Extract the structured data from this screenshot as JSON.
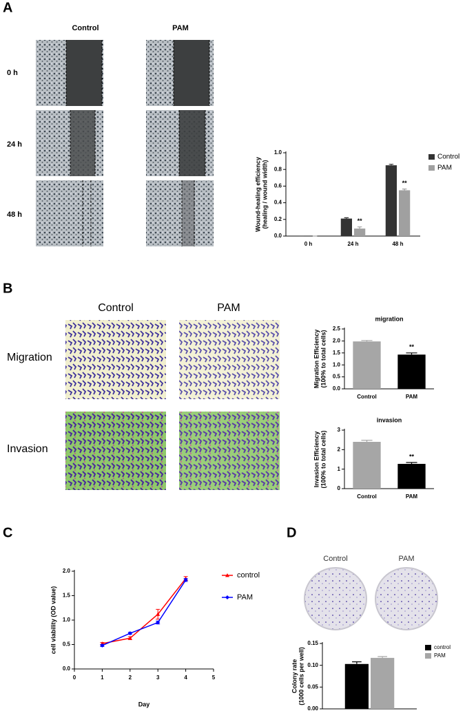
{
  "figure": {
    "panels": [
      {
        "label": "A",
        "columns": [
          "Control",
          "PAM"
        ],
        "rows": [
          "0 h",
          "24 h",
          "48 h"
        ]
      },
      {
        "label": "B",
        "columns": [
          "Control",
          "PAM"
        ],
        "rows": [
          "Migration",
          "Invasion"
        ]
      },
      {
        "label": "C"
      },
      {
        "label": "D",
        "columns": [
          "Control",
          "PAM"
        ]
      }
    ]
  },
  "chart_data": [
    {
      "type": "bar",
      "ylabel": [
        "Wound-healing efficiency",
        "(healing / wound width)"
      ],
      "categories": [
        "0 h",
        "24 h",
        "48 h"
      ],
      "series": [
        {
          "name": "Control",
          "color": "#333333",
          "values": [
            0,
            0.21,
            0.85
          ],
          "errors": [
            0,
            0.01,
            0.012
          ],
          "significance": [
            null,
            null,
            null
          ]
        },
        {
          "name": "PAM",
          "color": "#a0a0a0",
          "values": [
            0,
            0.09,
            0.55
          ],
          "errors": [
            0,
            0.02,
            0.015
          ],
          "significance": [
            null,
            "**",
            "**"
          ]
        }
      ],
      "ylim": [
        0,
        1.0
      ],
      "yticks": [
        {
          "value": 0,
          "label": "0.0"
        },
        0.2,
        0.4,
        0.6,
        0.8,
        {
          "value": 1,
          "label": "1.0"
        }
      ],
      "legend": "right"
    },
    {
      "type": "bar",
      "title": "migration",
      "ylabel": [
        "Migration Efficiency",
        "(100% to total cells)"
      ],
      "categories": [
        "Control",
        "PAM"
      ],
      "values": [
        1.98,
        1.43
      ],
      "errors": [
        0.04,
        0.07
      ],
      "significance": [
        null,
        "**"
      ],
      "colors": [
        "#a6a6a6",
        "#000000"
      ],
      "ylim": [
        0,
        2.5
      ],
      "yticks": [
        {
          "value": 0,
          "label": "0.0"
        },
        0.5,
        {
          "value": 1,
          "label": "1.0"
        },
        1.5,
        {
          "value": 2,
          "label": "2.0"
        },
        2.5
      ]
    },
    {
      "type": "bar",
      "title": "invasion",
      "ylabel": [
        "Invasion Efficiency",
        "(100% to total cells)"
      ],
      "categories": [
        "Control",
        "PAM"
      ],
      "values": [
        2.4,
        1.27
      ],
      "errors": [
        0.08,
        0.07
      ],
      "significance": [
        null,
        "**"
      ],
      "colors": [
        "#a6a6a6",
        "#000000"
      ],
      "ylim": [
        0,
        3
      ],
      "yticks": [
        0,
        1,
        2,
        3
      ]
    },
    {
      "type": "line",
      "ylabel": [
        "cell viability (OD value)"
      ],
      "xlabel": "Day",
      "x": [
        1,
        2,
        3,
        4
      ],
      "series": [
        {
          "name": "control",
          "color": "#ff0000",
          "marker": "triangle",
          "values": [
            0.52,
            0.63,
            1.12,
            1.85
          ],
          "errors": [
            0.02,
            0.03,
            0.1,
            0.04
          ]
        },
        {
          "name": "PAM",
          "color": "#0000ff",
          "marker": "diamond",
          "values": [
            0.48,
            0.73,
            0.95,
            1.82
          ],
          "errors": [
            0.02,
            0.02,
            0.03,
            0.03
          ]
        }
      ],
      "xlim": [
        0,
        5
      ],
      "xticks": [
        0,
        1,
        2,
        3,
        4,
        5
      ],
      "ylim": [
        0,
        2.0
      ],
      "yticks": [
        {
          "value": 0,
          "label": "0.0"
        },
        0.5,
        {
          "value": 1,
          "label": "1.0"
        },
        1.5,
        {
          "value": 2,
          "label": "2.0"
        }
      ],
      "legend": "right"
    },
    {
      "type": "bar",
      "ylabel": [
        "Colony rate",
        "(1000 cells per well)"
      ],
      "categories": [
        null
      ],
      "series": [
        {
          "name": "control",
          "color": "#000000",
          "values": [
            0.103
          ],
          "errors": [
            0.005
          ]
        },
        {
          "name": "PAM",
          "color": "#a6a6a6",
          "values": [
            0.117
          ],
          "errors": [
            0.003
          ]
        }
      ],
      "ylim": [
        0,
        0.15
      ],
      "yticks": [
        {
          "value": 0,
          "label": "0.00"
        },
        {
          "value": 0.05,
          "label": "0.05"
        },
        {
          "value": 0.1,
          "label": "0.10"
        },
        {
          "value": 0.15,
          "label": "0.15"
        }
      ],
      "legend": "right"
    }
  ]
}
